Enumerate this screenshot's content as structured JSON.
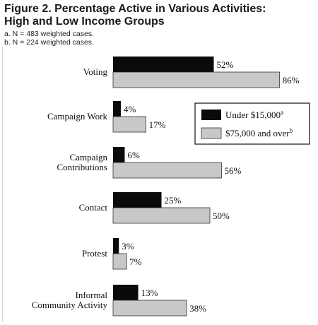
{
  "title_line1": "Figure 2. Percentage Active in Various Activities:",
  "title_line2": "High and Low Income Groups",
  "note_a": "a. N = 483 weighted cases.",
  "note_b": "b. N = 224 weighted cases.",
  "colors": {
    "low_income": "#0a0a0a",
    "high_income": "#c8c8c8",
    "bar_edge": "#333333"
  },
  "chart_data": {
    "type": "bar",
    "orientation": "horizontal",
    "title": "Figure 2. Percentage Active in Various Activities: High and Low Income Groups",
    "categories": [
      [
        "Voting"
      ],
      [
        "Campaign Work"
      ],
      [
        "Campaign",
        "Contributions"
      ],
      [
        "Contact"
      ],
      [
        "Protest"
      ],
      [
        "Informal",
        "Community Activity"
      ]
    ],
    "series": [
      {
        "name": "Under $15,000",
        "superscript": "a",
        "values": [
          52,
          4,
          6,
          25,
          3,
          13
        ],
        "labels": [
          "52%",
          "4%",
          "6%",
          "25%",
          "3%",
          "13%"
        ]
      },
      {
        "name": "$75,000 and over",
        "superscript": "b",
        "values": [
          86,
          17,
          56,
          50,
          7,
          38
        ],
        "labels": [
          "86%",
          "17%",
          "56%",
          "50%",
          "7%",
          "38%"
        ]
      }
    ],
    "xlim": [
      0,
      100
    ],
    "legend_position": "right",
    "grid": false
  }
}
